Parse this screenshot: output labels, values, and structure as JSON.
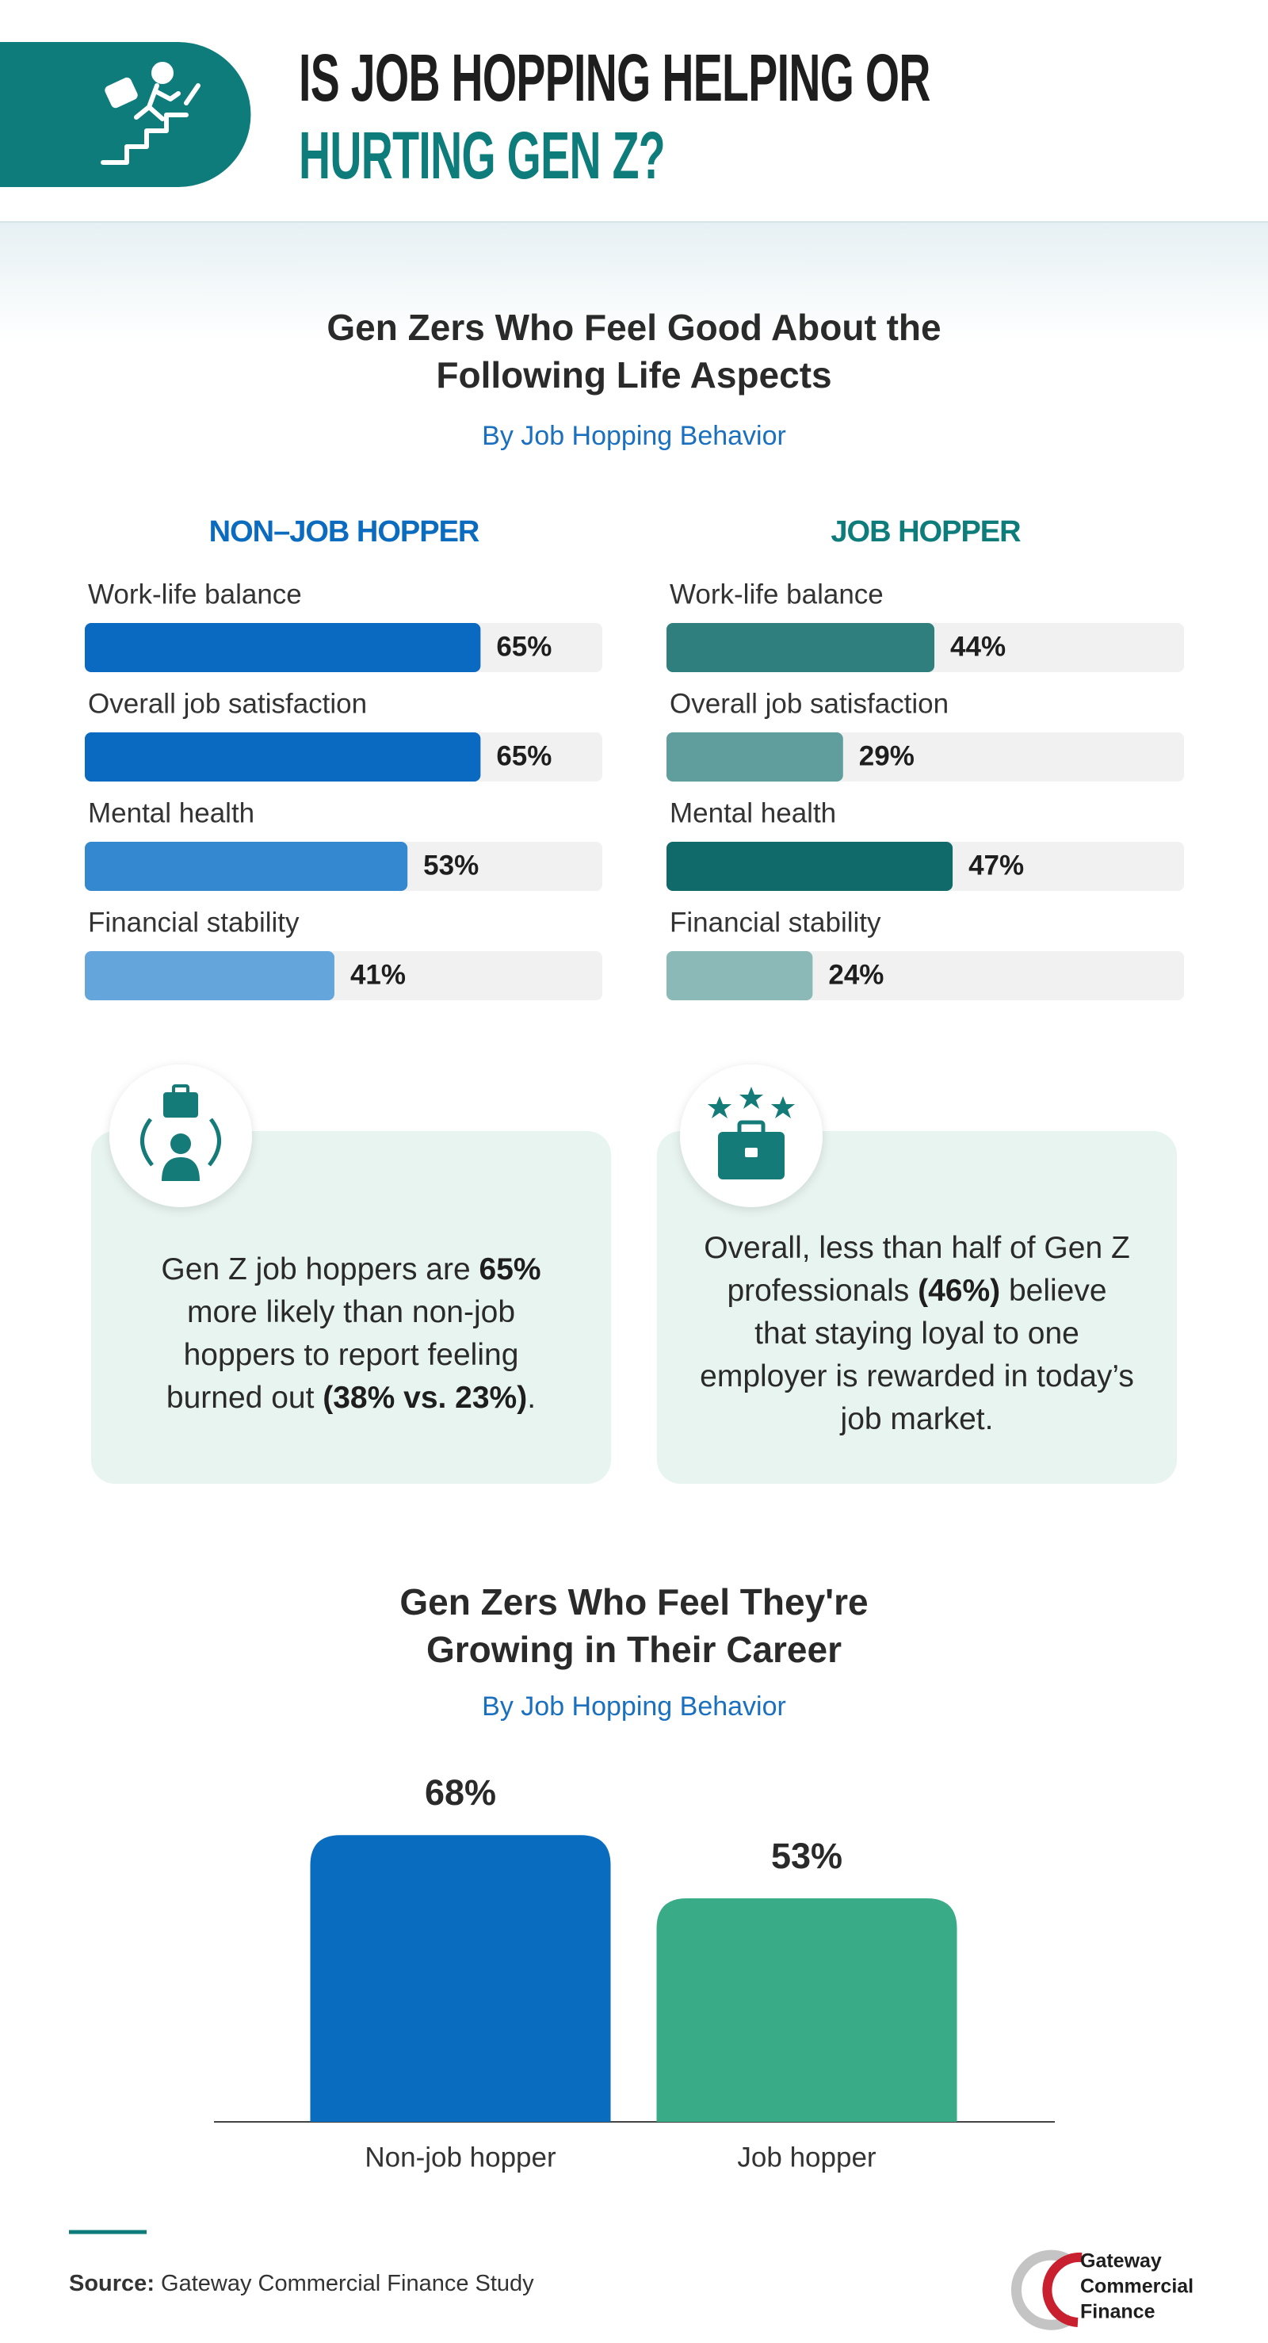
{
  "header": {
    "title": [
      "IS JOB HOPPING HELPING OR",
      "HURTING GEN Z?"
    ]
  },
  "chart_data": [
    {
      "type": "barh",
      "title": [
        "Gen Zers Who Feel Good About the",
        "Following Life Aspects"
      ],
      "subtitle": "By Job Hopping Behavior",
      "categories": [
        "Work-life balance",
        "Overall job satisfaction",
        "Mental health",
        "Financial stability"
      ],
      "xlim": [
        0,
        85
      ],
      "series": [
        {
          "name": "NON–JOB HOPPER",
          "color": "#0b6cbf",
          "bar_colors": [
            "#0a69c0",
            "#0a69c0",
            "#3388cf",
            "#64a6dc"
          ],
          "values": [
            65,
            65,
            53,
            41
          ],
          "value_labels": [
            "65%",
            "65%",
            "53%",
            "41%"
          ]
        },
        {
          "name": "JOB HOPPER",
          "color": "#0e7c7b",
          "bar_colors": [
            "#2f7f7e",
            "#5f9e9c",
            "#106a69",
            "#8ab9b7"
          ],
          "values": [
            44,
            29,
            47,
            24
          ],
          "value_labels": [
            "44%",
            "29%",
            "47%",
            "24%"
          ]
        }
      ]
    },
    {
      "type": "bar",
      "title": [
        "Gen Zers Who Feel They're",
        "Growing in Their Career"
      ],
      "subtitle": "By Job Hopping Behavior",
      "categories": [
        "Non-job hopper",
        "Job hopper"
      ],
      "values": [
        68,
        53
      ],
      "value_labels": [
        "68%",
        "53%"
      ],
      "colors": [
        "#0a6cbf",
        "#3aab87"
      ],
      "ylim": [
        0,
        75
      ]
    }
  ],
  "callouts": [
    {
      "runs": [
        {
          "text": "Gen Z job hoppers are "
        },
        {
          "text": "65%",
          "bold": true
        },
        {
          "text": " more likely than non-job hoppers to report feeling burned out "
        },
        {
          "text": "(38% vs. 23%)",
          "bold": true
        },
        {
          "text": "."
        }
      ]
    },
    {
      "runs": [
        {
          "text": "Overall, less than half of Gen Z professionals "
        },
        {
          "text": "(46%)",
          "bold": true
        },
        {
          "text": " believe that staying loyal to one employer is rewarded in today’s job market."
        }
      ]
    }
  ],
  "source": {
    "label": "Source:",
    "text": "Gateway Commercial Finance Study"
  },
  "logo": [
    "Gateway",
    "Commercial",
    "Finance"
  ]
}
